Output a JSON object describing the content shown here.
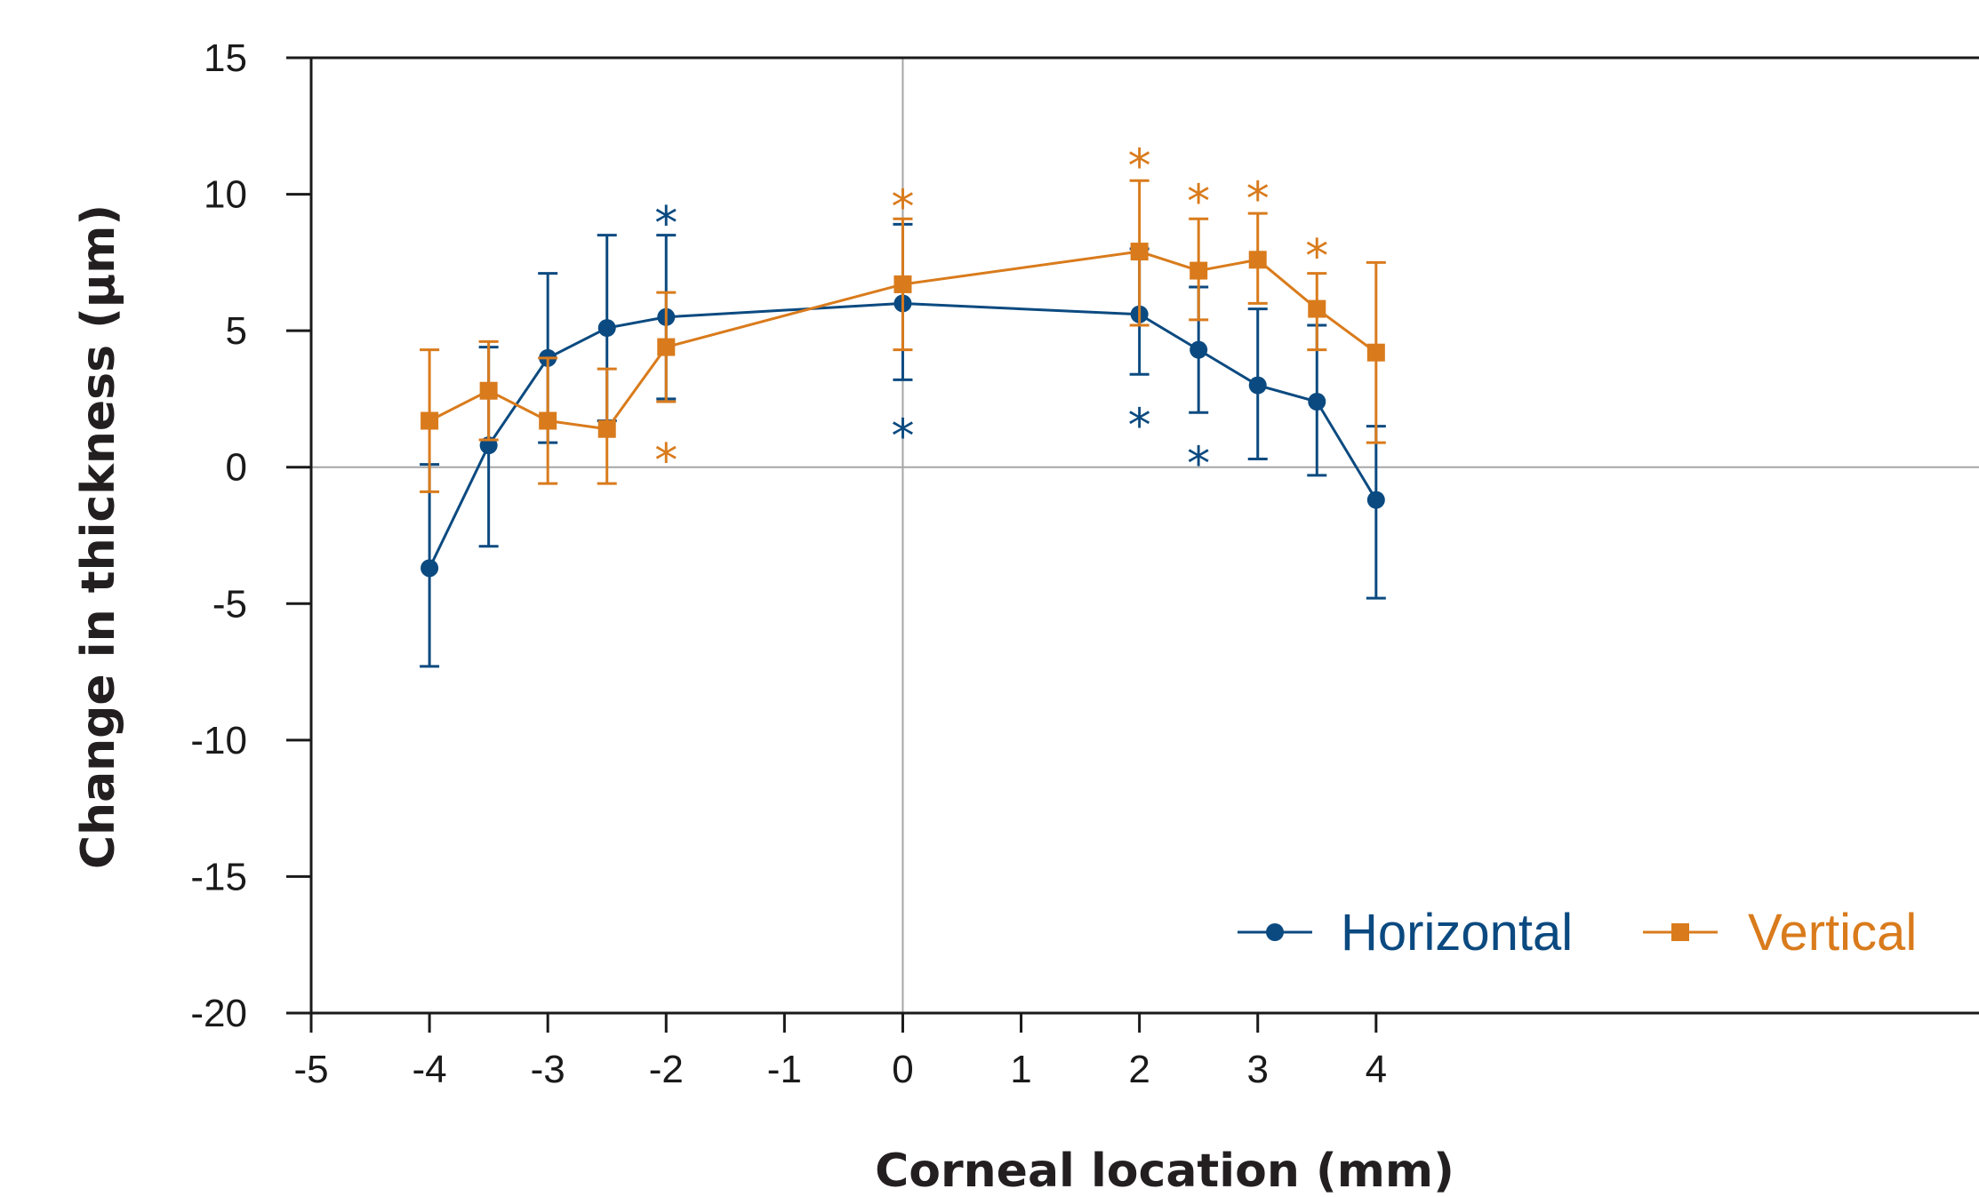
{
  "chart_data": {
    "type": "line",
    "xlabel": "Corneal location (mm)",
    "ylabel": "Change in thickness (µm)",
    "xlim": [
      -5,
      5
    ],
    "ylim": [
      -20,
      15
    ],
    "x_ticks": [
      -5,
      -4,
      -3,
      -2,
      -1,
      0,
      1,
      2,
      3,
      4
    ],
    "x_tick_labels": [
      "-5",
      "-4",
      "-3",
      "-2",
      "-1",
      "0",
      "1",
      "2",
      "3",
      "4"
    ],
    "y_ticks": [
      15,
      10,
      5,
      0,
      -5,
      -10,
      -15,
      -20
    ],
    "y_tick_labels": [
      "15",
      "10",
      "5",
      "0",
      "-5",
      "-10",
      "-15",
      "-20"
    ],
    "reference_lines": {
      "x": 0,
      "y": 0
    },
    "legend_position": "bottom-right",
    "series": [
      {
        "name": "Horizontal",
        "color": "#0b4a80",
        "marker": "circle",
        "x": [
          -4,
          -3.5,
          -3,
          -2.5,
          -2,
          0,
          2,
          2.5,
          3,
          3.5,
          4
        ],
        "y": [
          -3.7,
          0.8,
          4.0,
          5.1,
          5.5,
          6.0,
          5.6,
          4.3,
          3.0,
          2.4,
          -1.2
        ],
        "error_low": [
          -7.3,
          -2.9,
          0.9,
          1.7,
          2.5,
          3.2,
          3.4,
          2.0,
          0.3,
          -0.3,
          -4.8
        ],
        "error_high": [
          0.1,
          4.4,
          7.1,
          8.5,
          8.5,
          8.9,
          8.0,
          6.6,
          5.8,
          5.2,
          1.5
        ],
        "significance_markers": [
          {
            "x": -2,
            "y": 9.4,
            "text": "*"
          },
          {
            "x": 0,
            "y": 1.6,
            "text": "*"
          },
          {
            "x": 2,
            "y": 2.0,
            "text": "*"
          },
          {
            "x": 2.5,
            "y": 0.6,
            "text": "*"
          }
        ]
      },
      {
        "name": "Vertical",
        "color": "#d97b1c",
        "marker": "square",
        "x": [
          -4,
          -3.5,
          -3,
          -2.5,
          -2,
          0,
          2,
          2.5,
          3,
          3.5,
          4
        ],
        "y": [
          1.7,
          2.8,
          1.7,
          1.4,
          4.4,
          6.7,
          7.9,
          7.2,
          7.6,
          5.8,
          4.2
        ],
        "error_low": [
          -0.9,
          1.0,
          -0.6,
          -0.6,
          2.4,
          4.3,
          5.2,
          5.4,
          6.0,
          4.3,
          0.9
        ],
        "error_high": [
          4.3,
          4.6,
          4.0,
          3.6,
          6.4,
          9.1,
          10.5,
          9.1,
          9.3,
          7.1,
          7.5
        ],
        "significance_markers": [
          {
            "x": -2,
            "y": 0.7,
            "text": "*"
          },
          {
            "x": 0,
            "y": 10.0,
            "text": "*"
          },
          {
            "x": 2,
            "y": 11.5,
            "text": "*"
          },
          {
            "x": 2.5,
            "y": 10.2,
            "text": "*"
          },
          {
            "x": 3,
            "y": 10.3,
            "text": "*"
          },
          {
            "x": 3.5,
            "y": 8.2,
            "text": "*"
          }
        ]
      }
    ]
  }
}
